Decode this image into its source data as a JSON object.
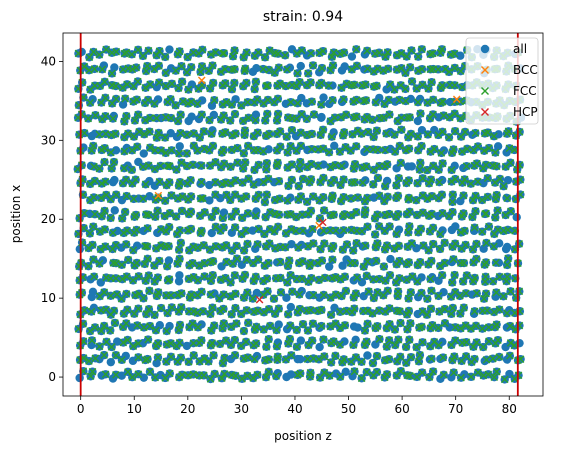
{
  "chart_data": {
    "type": "scatter",
    "title": "strain: 0.94",
    "xlabel": "position z",
    "ylabel": "position x",
    "xlim": [
      -3.3,
      86.3
    ],
    "ylim": [
      -2.4,
      43.6
    ],
    "xticks": [
      0,
      10,
      20,
      30,
      40,
      50,
      60,
      70,
      80
    ],
    "yticks": [
      0,
      10,
      20,
      30,
      40
    ],
    "grid": false,
    "legend_position": "top-right",
    "boundaries_x": [
      0,
      81.6
    ],
    "boundary_color": "#cc0000",
    "lattice": {
      "rows_y_start": 0.2,
      "rows_y_step": 2.04,
      "row_count": 21,
      "cols_x_start": 0,
      "cols_x_step": 2.04,
      "col_count": 41,
      "jitter_x": 0.35,
      "jitter_y": 0.3
    },
    "series": [
      {
        "name": "all",
        "marker": "o",
        "color": "#1f77b4"
      },
      {
        "name": "BCC",
        "marker": "x",
        "color": "#ff7f0e"
      },
      {
        "name": "FCC",
        "marker": "x",
        "color": "#2ca02c"
      },
      {
        "name": "HCP",
        "marker": "x",
        "color": "#d62728"
      }
    ]
  }
}
